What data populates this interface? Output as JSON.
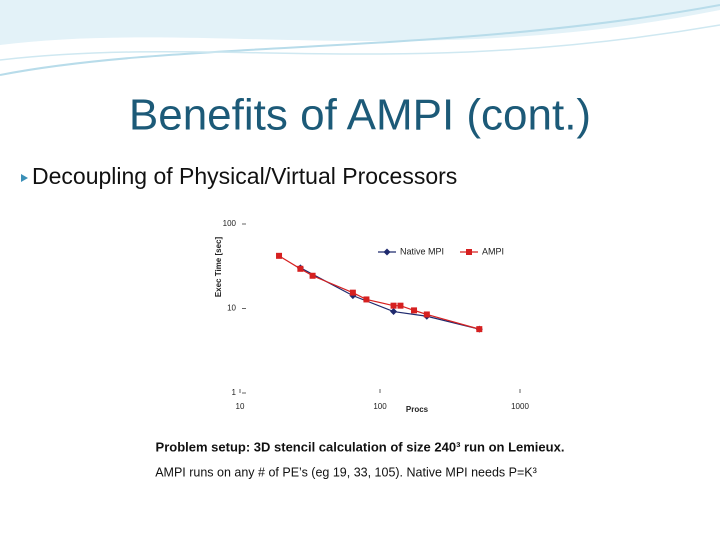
{
  "slide": {
    "title": "Benefits of AMPI (cont.)",
    "bullet": "Decoupling of Physical/Virtual Processors",
    "notes": [
      "Problem setup: 3D stencil calculation of size 240³ run on Lemieux.",
      "AMPI runs on any # of PE’s (eg 19, 33, 105). Native MPI needs P=K³"
    ]
  },
  "chart_data": {
    "type": "line",
    "x_label": "Procs",
    "y_label": "Exec Time [sec]",
    "xscale": "log",
    "yscale": "log",
    "xlim": [
      10,
      1000
    ],
    "ylim": [
      1,
      100
    ],
    "xticks": [
      10,
      100,
      1000
    ],
    "yticks": [
      1,
      10,
      100
    ],
    "legend": "upper right",
    "series": [
      {
        "name": "Native MPI",
        "color": "#1f2a6e",
        "marker": "diamond",
        "x": [
          27,
          64,
          125,
          216,
          512
        ],
        "values": [
          30.3,
          14.2,
          9.2,
          8.1,
          5.7
        ]
      },
      {
        "name": "AMPI",
        "color": "#d62020",
        "marker": "square",
        "x": [
          19,
          27,
          33,
          64,
          80,
          125,
          140,
          175,
          216,
          512
        ],
        "values": [
          42,
          29.5,
          24.4,
          15.4,
          12.8,
          10.8,
          10.8,
          9.5,
          8.5,
          5.7
        ]
      }
    ]
  }
}
